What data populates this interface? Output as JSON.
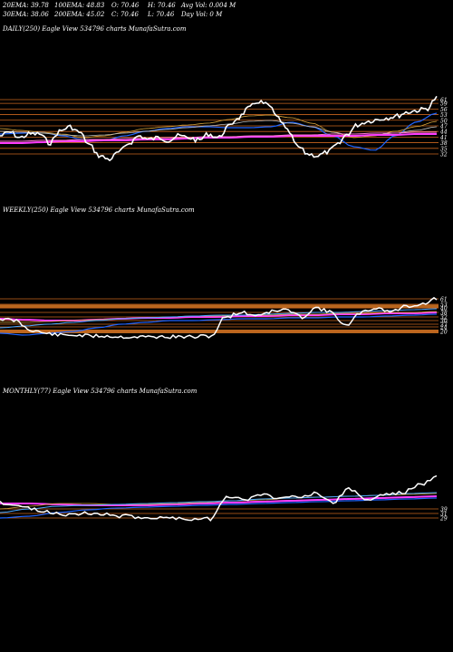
{
  "header": {
    "ema20": "20EMA: 39.78",
    "ema100": "100EMA: 48.83",
    "open": "O: 70.46",
    "high": "H: 70.46",
    "avg_vol": "Avg Vol: 0.004  M",
    "ema30": "30EMA: 38.06",
    "ema200": "200EMA: 45.02",
    "close": "C: 70.46",
    "low": "L: 70.46",
    "day_vol": "Day Vol: 0  M"
  },
  "panels": {
    "daily": {
      "label": "DAILY(250) Eagle  View  534796  charts MunafaSutra.com"
    },
    "weekly": {
      "label": "WEEKLY(250) Eagle  View  534796  charts MunafaSutra.com"
    },
    "monthly": {
      "label": "MONTHLY(77) Eagle  View  534796  charts MunafaSutra.com"
    }
  },
  "colors": {
    "background": "#000000",
    "price": "#ffffff",
    "ema_blue": "#1e64ff",
    "ema_light_blue": "#4aa8ff",
    "ema_magenta": "#ff3cff",
    "ema_pink": "#ff7ad0",
    "ema_gold": "#d4a23a",
    "ema_grey": "#bbbbbb",
    "level_line": "#c8641e",
    "band": "#b8661e"
  },
  "chart_data": [
    {
      "type": "line",
      "title": "DAILY(250) Eagle  View  534796  charts MunafaSutra.com",
      "price_levels": [
        "61",
        "59",
        "56",
        "53",
        "50",
        "47",
        "44",
        "41",
        "38",
        "35",
        "32"
      ],
      "series": [
        {
          "values": [
            44,
            46,
            43,
            44,
            45,
            41,
            47,
            50,
            47,
            41,
            35,
            32,
            36,
            40,
            44,
            42,
            44,
            43,
            44,
            45,
            42,
            44,
            41,
            44,
            46,
            49,
            52,
            58,
            60,
            56,
            50,
            44,
            38,
            34,
            32,
            33,
            35,
            38,
            40,
            45,
            50,
            53,
            55,
            56,
            59,
            61
          ]
        }
      ]
    },
    {
      "type": "line",
      "title": "WEEKLY(250) Eagle  View  534796  charts MunafaSutra.com",
      "price_levels": [
        "61",
        "53",
        "40",
        "38",
        "32",
        "30",
        "27",
        "24",
        "20"
      ],
      "series": [
        {
          "values": [
            33,
            34,
            27,
            25,
            24,
            24,
            23,
            22,
            21,
            20,
            20,
            20,
            20,
            21,
            34,
            38,
            36,
            40,
            44,
            40,
            46,
            50,
            42,
            30,
            48,
            52,
            54,
            56,
            58,
            61
          ]
        }
      ]
    },
    {
      "type": "line",
      "title": "MONTHLY(77) Eagle  View  534796  charts MunafaSutra.com",
      "price_levels": [
        "39",
        "31",
        "29"
      ],
      "series": [
        {
          "values": [
            30,
            30,
            31,
            33,
            32,
            31,
            30,
            29,
            29,
            29,
            28,
            28,
            40,
            42,
            36,
            45,
            43,
            44,
            47,
            42,
            50,
            46,
            48,
            52,
            56,
            61
          ]
        }
      ]
    }
  ]
}
